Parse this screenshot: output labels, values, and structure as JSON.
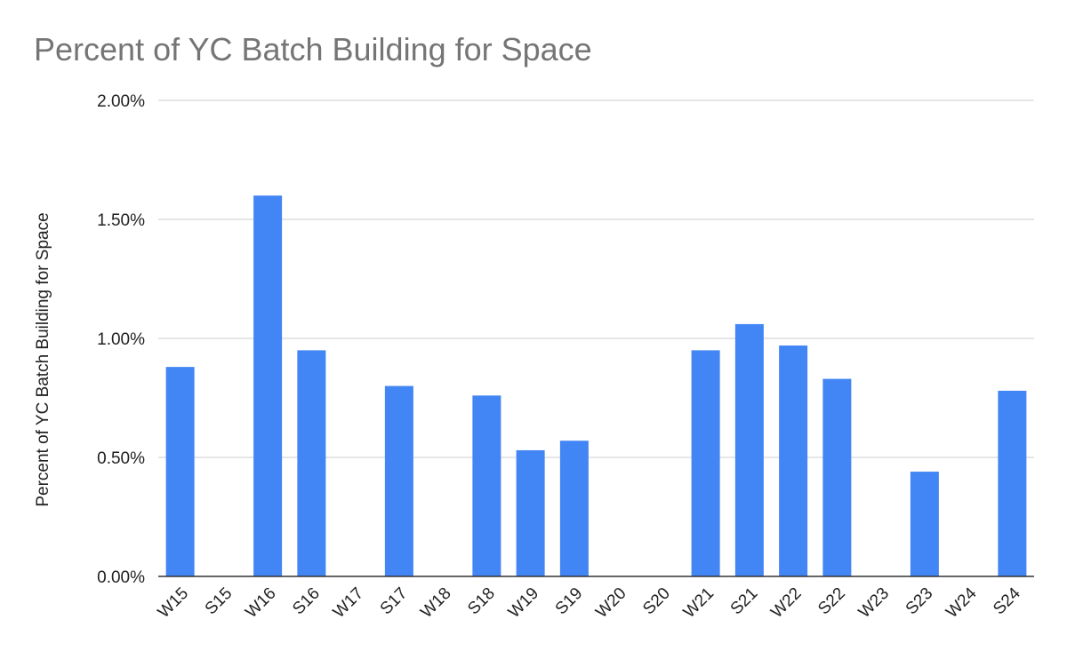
{
  "chart_data": {
    "type": "bar",
    "title": "Percent of YC Batch Building for Space",
    "y_label": "Percent of YC Batch Building for Space",
    "categories": [
      "W15",
      "S15",
      "W16",
      "S16",
      "W17",
      "S17",
      "W18",
      "S18",
      "W19",
      "S19",
      "W20",
      "S20",
      "W21",
      "S21",
      "W22",
      "S22",
      "W23",
      "S23",
      "W24",
      "S24"
    ],
    "values": [
      0.88,
      0,
      1.6,
      0.95,
      0,
      0.8,
      0,
      0.76,
      0.53,
      0.57,
      0,
      0,
      0.95,
      1.06,
      0.97,
      0.83,
      0,
      0.44,
      0,
      0.78
    ],
    "color": "#4285f4",
    "ylim": [
      0,
      2
    ],
    "yticks": [
      {
        "value": 0,
        "label": "0.00%"
      },
      {
        "value": 0.5,
        "label": "0.50%"
      },
      {
        "value": 1,
        "label": "1.00%"
      },
      {
        "value": 1.5,
        "label": "1.50%"
      },
      {
        "value": 2,
        "label": "2.00%"
      }
    ],
    "grid": true
  }
}
